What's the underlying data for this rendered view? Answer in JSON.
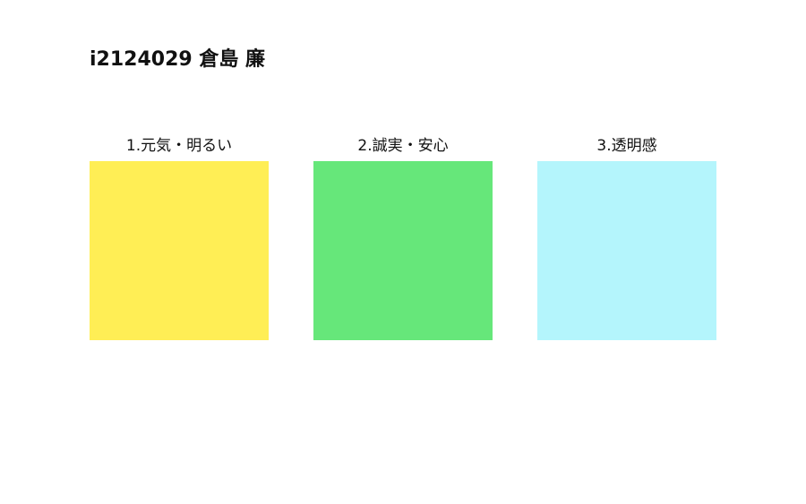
{
  "page": {
    "title": "i2124029 倉島 廉"
  },
  "swatches": [
    {
      "label": "1.元気・明るい",
      "color": "#ffee55"
    },
    {
      "label": "2.誠実・安心",
      "color": "#66e77a"
    },
    {
      "label": "3.透明感",
      "color": "#b4f5fc"
    }
  ]
}
